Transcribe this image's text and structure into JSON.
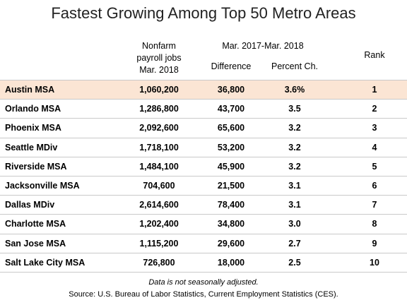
{
  "chart_data": {
    "type": "table",
    "title": "Fastest Growing Among Top 50 Metro Areas",
    "headers": {
      "jobs_line1": "Nonfarm",
      "jobs_line2": "payroll jobs",
      "jobs_line3": "Mar. 2018",
      "period": "Mar. 2017-Mar. 2018",
      "difference": "Difference",
      "percent": "Percent Ch.",
      "rank": "Rank"
    },
    "rows": [
      {
        "area": "Austin MSA",
        "jobs": "1,060,200",
        "difference": "36,800",
        "percent": "3.6%",
        "rank": "1"
      },
      {
        "area": "Orlando MSA",
        "jobs": "1,286,800",
        "difference": "43,700",
        "percent": "3.5",
        "rank": "2"
      },
      {
        "area": "Phoenix MSA",
        "jobs": "2,092,600",
        "difference": "65,600",
        "percent": "3.2",
        "rank": "3"
      },
      {
        "area": "Seattle MDiv",
        "jobs": "1,718,100",
        "difference": "53,200",
        "percent": "3.2",
        "rank": "4"
      },
      {
        "area": "Riverside MSA",
        "jobs": "1,484,100",
        "difference": "45,900",
        "percent": "3.2",
        "rank": "5"
      },
      {
        "area": "Jacksonville MSA",
        "jobs": "704,600",
        "difference": "21,500",
        "percent": "3.1",
        "rank": "6"
      },
      {
        "area": "Dallas MDiv",
        "jobs": "2,614,600",
        "difference": "78,400",
        "percent": "3.1",
        "rank": "7"
      },
      {
        "area": "Charlotte MSA",
        "jobs": "1,202,400",
        "difference": "34,800",
        "percent": "3.0",
        "rank": "8"
      },
      {
        "area": "San Jose MSA",
        "jobs": "1,115,200",
        "difference": "29,600",
        "percent": "2.7",
        "rank": "9"
      },
      {
        "area": "Salt Lake City MSA",
        "jobs": "726,800",
        "difference": "18,000",
        "percent": "2.5",
        "rank": "10"
      }
    ],
    "highlight_color": "#fbe5d4",
    "note": "Data is not seasonally adjusted.",
    "source": "Source:  U.S. Bureau of Labor Statistics, Current Employment Statistics (CES)."
  }
}
